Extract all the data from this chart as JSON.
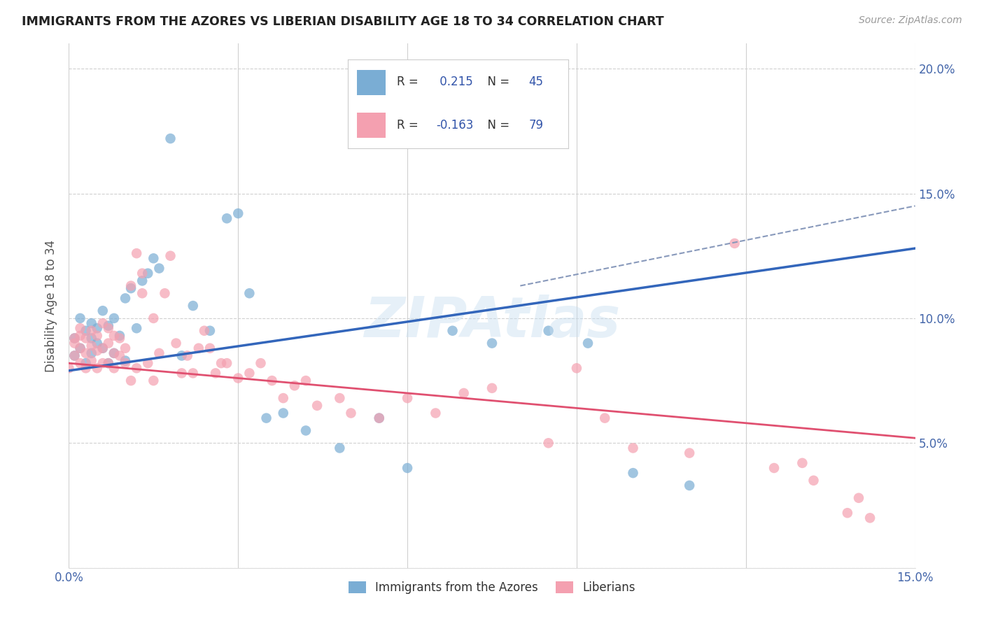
{
  "title": "IMMIGRANTS FROM THE AZORES VS LIBERIAN DISABILITY AGE 18 TO 34 CORRELATION CHART",
  "source": "Source: ZipAtlas.com",
  "ylabel": "Disability Age 18 to 34",
  "xlim": [
    0.0,
    0.15
  ],
  "ylim": [
    0.0,
    0.21
  ],
  "xtick_positions": [
    0.0,
    0.03,
    0.06,
    0.09,
    0.12,
    0.15
  ],
  "xticklabels": [
    "0.0%",
    "",
    "",
    "",
    "",
    "15.0%"
  ],
  "ytick_positions": [
    0.0,
    0.05,
    0.1,
    0.15,
    0.2
  ],
  "yticklabels": [
    "",
    "5.0%",
    "10.0%",
    "15.0%",
    "20.0%"
  ],
  "azores_color": "#7aadd4",
  "liberian_color": "#f4a0b0",
  "azores_R": 0.215,
  "azores_N": 45,
  "liberian_R": -0.163,
  "liberian_N": 79,
  "legend_label_azores": "Immigrants from the Azores",
  "legend_label_liberian": "Liberians",
  "watermark": "ZIPAtlas",
  "az_line_x0": 0.0,
  "az_line_y0": 0.079,
  "az_line_x1": 0.15,
  "az_line_y1": 0.128,
  "lib_line_x0": 0.0,
  "lib_line_y0": 0.082,
  "lib_line_x1": 0.15,
  "lib_line_y1": 0.052,
  "dash_line_x0": 0.08,
  "dash_line_y0": 0.113,
  "dash_line_x1": 0.15,
  "dash_line_y1": 0.145
}
